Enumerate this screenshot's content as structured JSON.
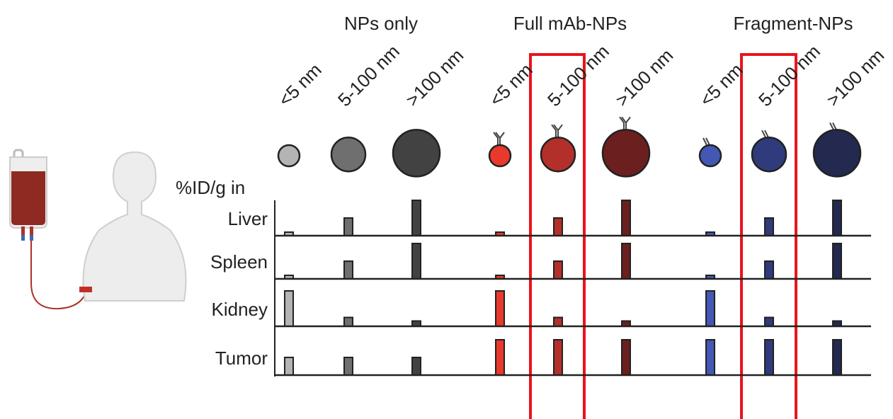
{
  "chart_data": {
    "type": "bar",
    "y_label": "%ID/g in",
    "groups": [
      "NPs only",
      "Full mAb-NPs",
      "Fragment-NPs"
    ],
    "categories": [
      "<5 nm",
      "5-100 nm",
      ">100 nm",
      "<5 nm",
      "5-100 nm",
      ">100 nm",
      "<5 nm",
      "5-100 nm",
      ">100 nm"
    ],
    "colors": [
      "#b4b4b4",
      "#6f6f6f",
      "#424242",
      "#e8392c",
      "#b3302a",
      "#6b1f1f",
      "#4258b4",
      "#2f3b7a",
      "#23294f"
    ],
    "ylim": [
      0,
      1
    ],
    "series": [
      {
        "name": "Liver",
        "values": [
          0.1,
          0.5,
          1,
          0.1,
          0.5,
          1,
          0.1,
          0.5,
          1
        ]
      },
      {
        "name": "Spleen",
        "values": [
          0.1,
          0.5,
          1,
          0.1,
          0.5,
          1,
          0.1,
          0.5,
          1
        ]
      },
      {
        "name": "Kidney",
        "values": [
          1,
          0.25,
          0.15,
          1,
          0.25,
          0.15,
          1,
          0.25,
          0.15
        ]
      },
      {
        "name": "Tumor",
        "values": [
          0.5,
          0.5,
          0.5,
          1,
          1,
          1,
          1,
          1,
          1
        ]
      }
    ]
  }
}
